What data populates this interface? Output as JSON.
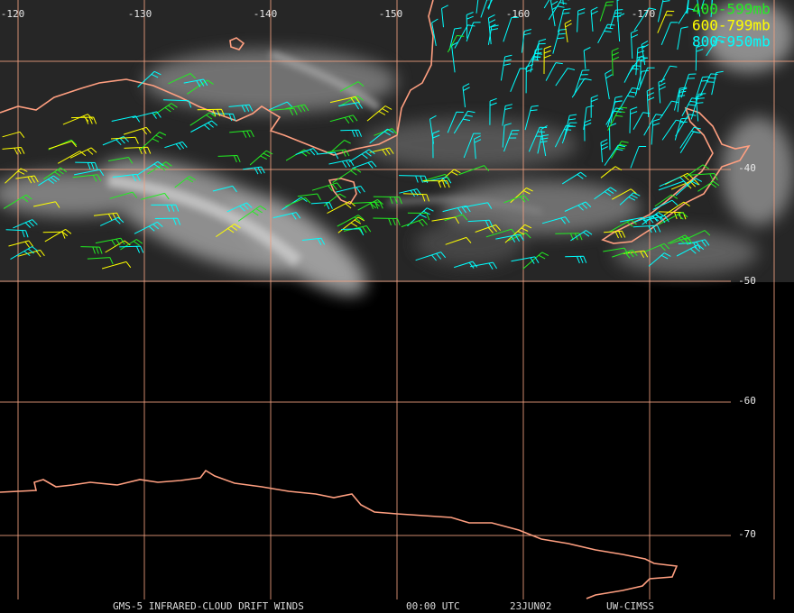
{
  "map": {
    "longitude_labels": [
      "-120",
      "-130",
      "-140",
      "-150",
      "-160",
      "-170"
    ],
    "latitude_labels": [
      "-40",
      "-50",
      "-60",
      "-70"
    ],
    "legend": [
      {
        "label": "400-599mb",
        "color": "#22ee22"
      },
      {
        "label": "600-799mb",
        "color": "#ffff00"
      },
      {
        "label": "800-950mb",
        "color": "#00ffff"
      }
    ],
    "footer": [
      "GMS-5 INFRARED-CLOUD DRIFT WINDS",
      "00:00 UTC",
      "23JUN02",
      "UW-CIMSS"
    ]
  }
}
